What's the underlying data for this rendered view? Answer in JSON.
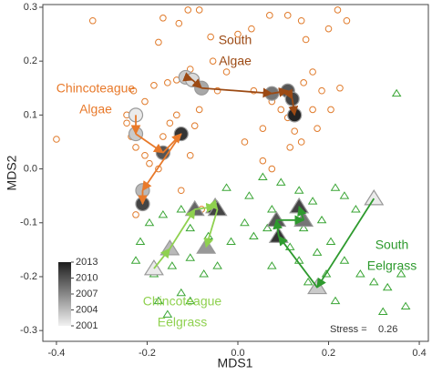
{
  "chart_data": {
    "type": "scatter",
    "x_label": "MDS1",
    "y_label": "MDS2",
    "xlim": [
      -0.43,
      0.42
    ],
    "ylim": [
      -0.32,
      0.305
    ],
    "xticks": [
      -0.4,
      -0.2,
      {
        "value": 0,
        "label": "0.0"
      },
      0.2,
      0.4
    ],
    "yticks": [
      -0.3,
      -0.2,
      -0.1,
      {
        "value": 0,
        "label": "0.0"
      },
      0.1,
      0.2,
      0.3
    ],
    "points": [
      {
        "marker": "circle",
        "color": "#e07a2a",
        "x": [
          -0.4,
          -0.32,
          -0.175,
          -0.165,
          -0.13,
          -0.11,
          -0.085,
          -0.06,
          0.0,
          0.03,
          0.07,
          0.11,
          0.14,
          0.22,
          0.24,
          0.2,
          0.15,
          -0.055,
          -0.105,
          -0.135,
          -0.185,
          -0.23,
          -0.205,
          -0.245,
          -0.245,
          -0.235,
          -0.225,
          -0.205,
          -0.195,
          -0.175,
          -0.165,
          -0.15,
          -0.135,
          -0.095,
          -0.085,
          -0.025,
          0.035,
          0.075,
          0.095,
          0.11,
          0.125,
          0.14,
          0.055,
          0.015,
          0.165,
          0.185,
          0.145,
          0.165,
          0.205,
          0.175,
          0.115,
          0.055,
          0.075,
          -0.105,
          -0.045,
          -0.08,
          -0.125,
          -0.225,
          -0.155,
          0.225
        ],
        "y": [
          0.055,
          0.275,
          0.235,
          0.28,
          0.27,
          0.295,
          0.295,
          0.245,
          0.25,
          0.26,
          0.285,
          0.285,
          0.275,
          0.295,
          0.275,
          0.26,
          0.24,
          0.2,
          0.185,
          0.165,
          0.155,
          0.145,
          0.125,
          0.1,
          0.085,
          0.06,
          0.04,
          0.025,
          0.01,
          0.0,
          0.06,
          0.085,
          0.1,
          0.08,
          0.11,
          0.18,
          0.145,
          0.125,
          0.11,
          0.095,
          0.07,
          0.05,
          0.075,
          0.05,
          0.11,
          0.145,
          0.16,
          0.18,
          0.11,
          0.075,
          0.04,
          0.015,
          0.0,
          0.025,
          0.145,
          -0.075,
          -0.04,
          -0.085,
          0.16,
          0.15
        ]
      },
      {
        "marker": "triangle",
        "color": "#3aa535",
        "x": [
          0.35,
          0.055,
          0.095,
          0.135,
          0.165,
          0.215,
          0.235,
          0.26,
          0.185,
          0.145,
          0.075,
          0.065,
          0.095,
          0.115,
          0.135,
          0.175,
          0.205,
          0.235,
          0.27,
          0.3,
          0.33,
          0.36,
          0.32,
          0.215,
          0.155,
          0.075,
          0.035,
          -0.125,
          -0.105,
          -0.165,
          -0.195,
          -0.215,
          -0.225,
          -0.185,
          -0.145,
          -0.105,
          -0.075,
          -0.045,
          -0.015,
          0.015,
          -0.065,
          -0.125,
          -0.175,
          -0.155,
          -0.105,
          -0.025,
          0.025,
          0.37,
          0.195
        ],
        "y": [
          0.14,
          -0.015,
          -0.025,
          -0.04,
          -0.06,
          -0.035,
          -0.05,
          -0.075,
          -0.095,
          -0.11,
          -0.075,
          -0.11,
          -0.125,
          -0.145,
          -0.17,
          -0.155,
          -0.135,
          -0.17,
          -0.195,
          -0.21,
          -0.22,
          -0.195,
          -0.265,
          -0.245,
          -0.21,
          -0.18,
          -0.125,
          -0.075,
          -0.11,
          -0.085,
          -0.1,
          -0.135,
          -0.17,
          -0.195,
          -0.18,
          -0.165,
          -0.195,
          -0.18,
          -0.135,
          -0.1,
          -0.125,
          -0.23,
          -0.245,
          -0.27,
          -0.245,
          -0.035,
          -0.05,
          -0.255,
          -0.195
        ]
      }
    ],
    "trajectories": [
      {
        "label": [
          "South",
          "Algae"
        ],
        "color": "#9c4a14",
        "marker": "circle",
        "x": [
          -0.115,
          -0.1,
          -0.08,
          0.075,
          0.11,
          0.12,
          0.125
        ],
        "y": [
          0.17,
          0.165,
          0.15,
          0.14,
          0.145,
          0.13,
          0.1
        ],
        "year": [
          2003,
          2002,
          2005,
          2008,
          2010,
          2011,
          2013
        ]
      },
      {
        "label": [
          "Chincoteague",
          "Algae"
        ],
        "color": "#e8792a",
        "marker": "circle",
        "x": [
          -0.225,
          -0.225,
          -0.165,
          -0.125,
          -0.21,
          -0.21
        ],
        "y": [
          0.1,
          0.065,
          0.03,
          0.065,
          -0.04,
          -0.065
        ],
        "year": [
          2001,
          2003,
          2010,
          2012,
          2004,
          2011
        ]
      },
      {
        "label": [
          "South",
          "Eelgrass"
        ],
        "color": "#2e9a2e",
        "marker": "triangle",
        "x": [
          0.3,
          0.175,
          0.09,
          0.085,
          0.145,
          0.135
        ],
        "y": [
          -0.055,
          -0.22,
          -0.125,
          -0.095,
          -0.095,
          -0.07
        ],
        "year": [
          2001,
          2003,
          2012,
          2010,
          2008,
          2011
        ]
      },
      {
        "label": [
          "Chincoteague",
          "Eelgrass"
        ],
        "color": "#8fd14f",
        "marker": "triangle",
        "x": [
          -0.185,
          -0.15,
          -0.095,
          -0.05,
          -0.045,
          -0.07
        ],
        "y": [
          -0.185,
          -0.148,
          -0.075,
          -0.07,
          -0.075,
          -0.145
        ],
        "year": [
          2001,
          2004,
          2009,
          2012,
          2011,
          2006
        ]
      }
    ],
    "colorbar": {
      "lim": [
        2001,
        2013
      ],
      "ticks": [
        2013,
        2010,
        2007,
        2004,
        2001
      ]
    },
    "stress_label": "Stress =",
    "stress": 0.26
  }
}
